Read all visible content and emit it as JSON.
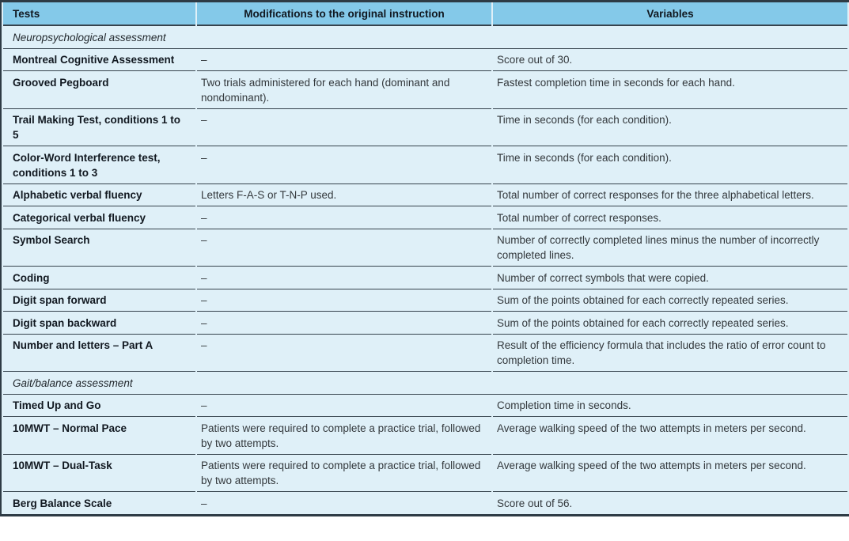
{
  "table": {
    "columns": [
      {
        "label": "Tests"
      },
      {
        "label": "Modifications to the original instruction"
      },
      {
        "label": "Variables"
      }
    ],
    "sections": [
      {
        "title": "Neuropsychological assessment",
        "rows": [
          {
            "test": "Montreal Cognitive Assessment",
            "modification": "–",
            "variable": "Score out of 30."
          },
          {
            "test": "Grooved Pegboard",
            "modification": "Two trials administered for each hand (dominant and nondominant).",
            "variable": "Fastest completion time in seconds for each hand."
          },
          {
            "test": "Trail Making Test, conditions 1 to 5",
            "modification": "–",
            "variable": "Time in seconds (for each condition)."
          },
          {
            "test": "Color-Word Interference test, conditions 1 to 3",
            "modification": "–",
            "variable": "Time in seconds (for each condition)."
          },
          {
            "test": "Alphabetic verbal fluency",
            "modification": "Letters F-A-S or T-N-P used.",
            "variable": "Total number of correct responses for the three alphabetical letters."
          },
          {
            "test": "Categorical verbal fluency",
            "modification": "–",
            "variable": "Total number of correct responses."
          },
          {
            "test": "Symbol Search",
            "modification": "–",
            "variable": "Number of correctly completed lines minus the number of incorrectly completed lines."
          },
          {
            "test": "Coding",
            "modification": "–",
            "variable": "Number of correct symbols that were copied."
          },
          {
            "test": "Digit span forward",
            "modification": "–",
            "variable": "Sum of the points obtained for each correctly repeated series."
          },
          {
            "test": "Digit span backward",
            "modification": "–",
            "variable": "Sum of the points obtained for each correctly repeated series."
          },
          {
            "test": "Number and letters – Part A",
            "modification": "–",
            "variable": "Result of the efficiency formula that includes the ratio of error count to completion time."
          }
        ]
      },
      {
        "title": "Gait/balance assessment",
        "rows": [
          {
            "test": "Timed Up and Go",
            "modification": "–",
            "variable": "Completion time in seconds."
          },
          {
            "test": "10MWT – Normal Pace",
            "modification": "Patients were required to complete a practice trial, followed by two attempts.",
            "variable": "Average walking speed of the two attempts in meters per second."
          },
          {
            "test": "10MWT – Dual-Task",
            "modification": "Patients were required to complete a practice trial, followed by two attempts.",
            "variable": "Average walking speed of the two attempts in meters per second."
          },
          {
            "test": "Berg Balance Scale",
            "modification": "–",
            "variable": "Score out of 56."
          }
        ]
      }
    ]
  },
  "colors": {
    "header_bg": "#84c9e9",
    "row_bg": "#dff0f8",
    "border": "#36434d",
    "outer_bar": "#2e3b45",
    "text_primary": "#111820",
    "text_body": "#33383c"
  }
}
